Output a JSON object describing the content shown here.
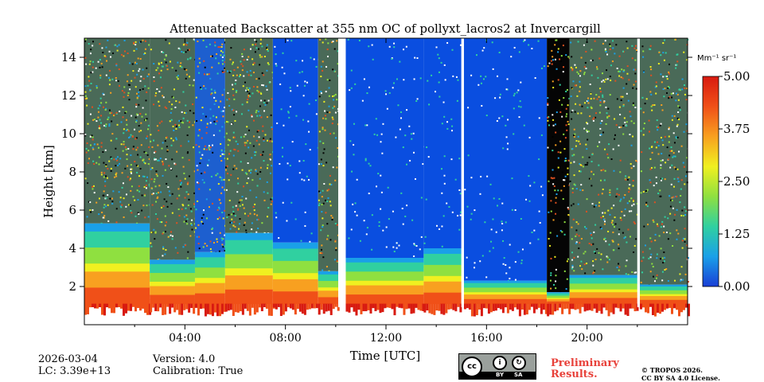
{
  "chart_data": {
    "type": "heatmap",
    "title": "Attenuated Backscatter at 355 nm OC of pollyxt_lacros2 at Invercargill",
    "xlabel": "Time [UTC]",
    "ylabel": "Height [km]",
    "xlim_hours": [
      0,
      24
    ],
    "ylim_km": [
      0,
      15
    ],
    "x_ticks": [
      {
        "hour": 4,
        "label": "04:00"
      },
      {
        "hour": 8,
        "label": "08:00"
      },
      {
        "hour": 12,
        "label": "12:00"
      },
      {
        "hour": 16,
        "label": "16:00"
      },
      {
        "hour": 20,
        "label": "20:00"
      }
    ],
    "x_minor_ticks_hours": [
      2,
      6,
      10,
      14,
      18,
      22
    ],
    "y_ticks": [
      {
        "value": 2,
        "label": "2"
      },
      {
        "value": 4,
        "label": "4"
      },
      {
        "value": 6,
        "label": "6"
      },
      {
        "value": 8,
        "label": "8"
      },
      {
        "value": 10,
        "label": "10"
      },
      {
        "value": 12,
        "label": "12"
      },
      {
        "value": 14,
        "label": "14"
      }
    ],
    "colorbar": {
      "label": "Mm⁻¹ sr⁻¹",
      "range": [
        0.0,
        5.0
      ],
      "ticks": [
        {
          "value": 0.0,
          "label": "0.00"
        },
        {
          "value": 1.25,
          "label": "1.25"
        },
        {
          "value": 2.5,
          "label": "2.50"
        },
        {
          "value": 3.75,
          "label": "3.75"
        },
        {
          "value": 5.0,
          "label": "5.00"
        }
      ],
      "colors": [
        "#1a3fd6",
        "#1aa0e8",
        "#30d0a0",
        "#8fe040",
        "#f0f020",
        "#f8a020",
        "#f05018",
        "#d81a10"
      ]
    },
    "segments": [
      {
        "t0": 0.0,
        "t1": 2.6,
        "kind": "noisy",
        "top": 5.3
      },
      {
        "t0": 2.6,
        "t1": 4.4,
        "kind": "noisy",
        "top": 3.4
      },
      {
        "t0": 4.4,
        "t1": 5.6,
        "kind": "mixed",
        "top": 3.8
      },
      {
        "t0": 5.6,
        "t1": 7.5,
        "kind": "noisy",
        "top": 4.8
      },
      {
        "t0": 7.5,
        "t1": 9.3,
        "kind": "clear",
        "top": 4.3
      },
      {
        "t0": 9.3,
        "t1": 10.1,
        "kind": "noisy",
        "top": 2.8
      },
      {
        "t0": 10.4,
        "t1": 13.5,
        "kind": "clear",
        "top": 3.5
      },
      {
        "t0": 13.5,
        "t1": 15.0,
        "kind": "clear",
        "top": 4.0
      },
      {
        "t0": 15.1,
        "t1": 18.4,
        "kind": "clear",
        "top": 2.3
      },
      {
        "t0": 18.4,
        "t1": 19.3,
        "kind": "dark",
        "top": 1.7
      },
      {
        "t0": 19.3,
        "t1": 22.0,
        "kind": "noisy",
        "top": 2.6
      },
      {
        "t0": 22.1,
        "t1": 24.0,
        "kind": "noisy",
        "top": 2.1
      }
    ],
    "gaps_hours": [
      [
        10.1,
        10.3
      ],
      [
        15.0,
        15.1
      ],
      [
        22.0,
        22.1
      ]
    ]
  },
  "footer": {
    "date": "2026-03-04",
    "lc": "LC: 3.39e+13",
    "version": "Version: 4.0",
    "calibration": "Calibration: True",
    "preliminary": "Preliminary\nResults.",
    "copyright": "© TROPOS 2026.\nCC BY SA 4.0 License.",
    "license_badge": {
      "cc": "cc",
      "by": "BY",
      "sa": "SA"
    }
  }
}
